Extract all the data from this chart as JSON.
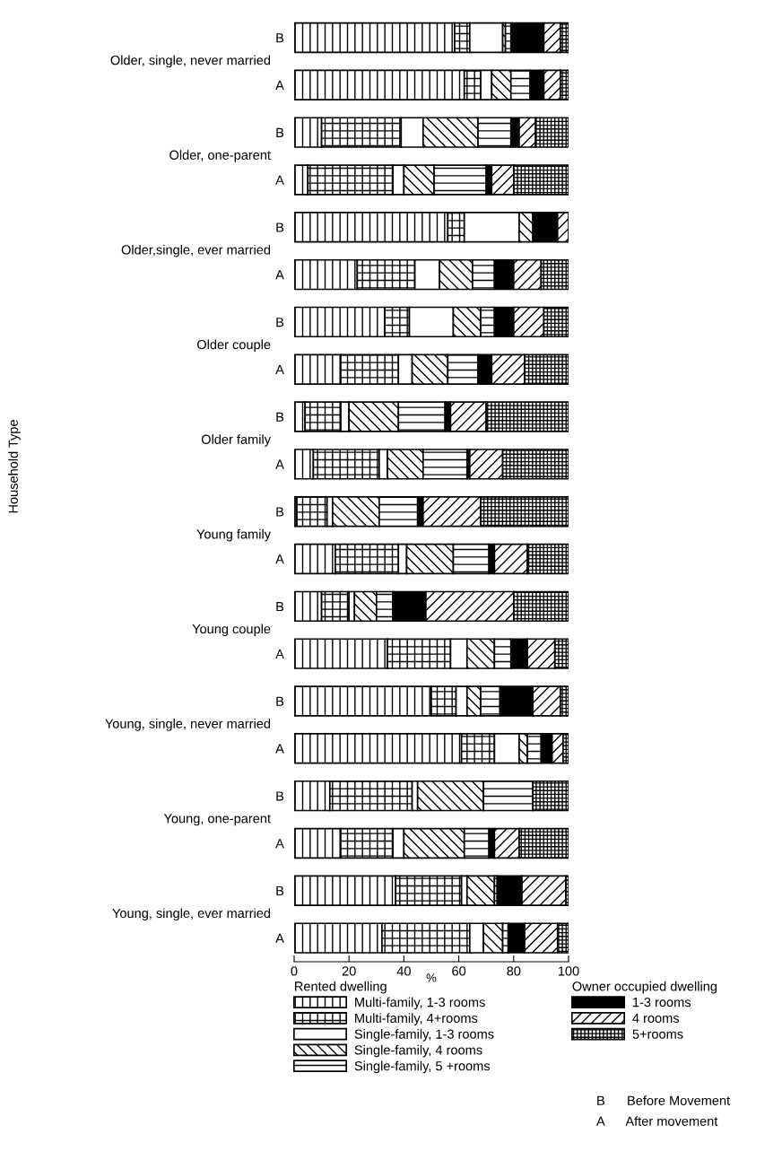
{
  "chart_data": {
    "type": "bar",
    "orientation": "horizontal",
    "stacked": true,
    "xlabel": "%",
    "xlim": [
      0,
      100
    ],
    "xticks": [
      0,
      20,
      40,
      60,
      80,
      100
    ],
    "legend": "bottom",
    "categories": [
      "B",
      "A",
      "B",
      "A",
      "B",
      "A",
      "B",
      "A",
      "B",
      "A",
      "B",
      "A",
      "B",
      "A",
      "B",
      "A",
      "B",
      "A",
      "B",
      "A"
    ],
    "series": [
      {
        "name": "Multi-family, 1-3 rooms",
        "color": "#000000",
        "values": [
          58.5,
          62,
          10,
          5,
          56,
          23,
          33,
          17,
          4,
          7,
          1,
          15,
          10,
          34,
          50,
          61,
          13,
          17,
          37,
          32
        ]
      },
      {
        "name": "Multi-family, 4+rooms",
        "color": "#000000",
        "values": [
          5.5,
          6,
          29,
          31,
          6,
          21,
          9,
          21,
          13,
          24,
          11,
          23,
          10,
          23,
          9,
          12,
          30,
          19,
          24,
          32
        ]
      },
      {
        "name": "Single-family, 1-3 rooms",
        "color": "#ffffff",
        "values": [
          12,
          4,
          8,
          4,
          20,
          9,
          16,
          5,
          3,
          3,
          2,
          3,
          2,
          6,
          4,
          9,
          2,
          4,
          2,
          5
        ]
      },
      {
        "name": "Single-family, 4 rooms",
        "color": "#000000",
        "values": [
          1,
          7,
          20,
          11,
          5,
          12,
          10,
          13,
          18,
          13,
          17,
          17,
          8,
          10,
          5,
          3,
          24,
          22,
          10,
          7
        ]
      },
      {
        "name": "Single-family, 5 +rooms",
        "color": "#000000",
        "values": [
          2,
          7,
          12,
          19,
          0,
          8,
          5,
          11,
          17,
          16,
          14,
          13,
          6,
          6,
          7,
          5,
          18,
          9,
          1,
          2
        ]
      },
      {
        "name": "1-3 rooms",
        "color": "#000000",
        "values": [
          12,
          5,
          3,
          2,
          9,
          7,
          7,
          5,
          2,
          1,
          2,
          2,
          12,
          6,
          12,
          4,
          0,
          2,
          9,
          6
        ]
      },
      {
        "name": "4 rooms",
        "color": "#000000",
        "values": [
          6,
          6,
          6,
          8,
          4,
          10,
          11,
          12,
          13,
          12,
          21,
          12,
          32,
          10,
          10,
          4,
          0,
          9,
          16,
          12
        ]
      },
      {
        "name": "5+rooms",
        "color": "#000000",
        "values": [
          3,
          3,
          12,
          20,
          0,
          10,
          9,
          16,
          30,
          24,
          32,
          15,
          20,
          5,
          3,
          2,
          13,
          18,
          1,
          4
        ]
      }
    ],
    "annotations": [
      "Older, single, never married",
      "Older, one-parent",
      "Older,single, ever married",
      "Older couple",
      "Older family",
      "Young family",
      "Young couple",
      "Young, single, never married",
      "Young, one-parent",
      "Young, single, ever married",
      "Rented dwelling",
      "Owner occupied dwelling",
      "B      Before Movement",
      "A      After movement",
      "Household Type"
    ]
  }
}
